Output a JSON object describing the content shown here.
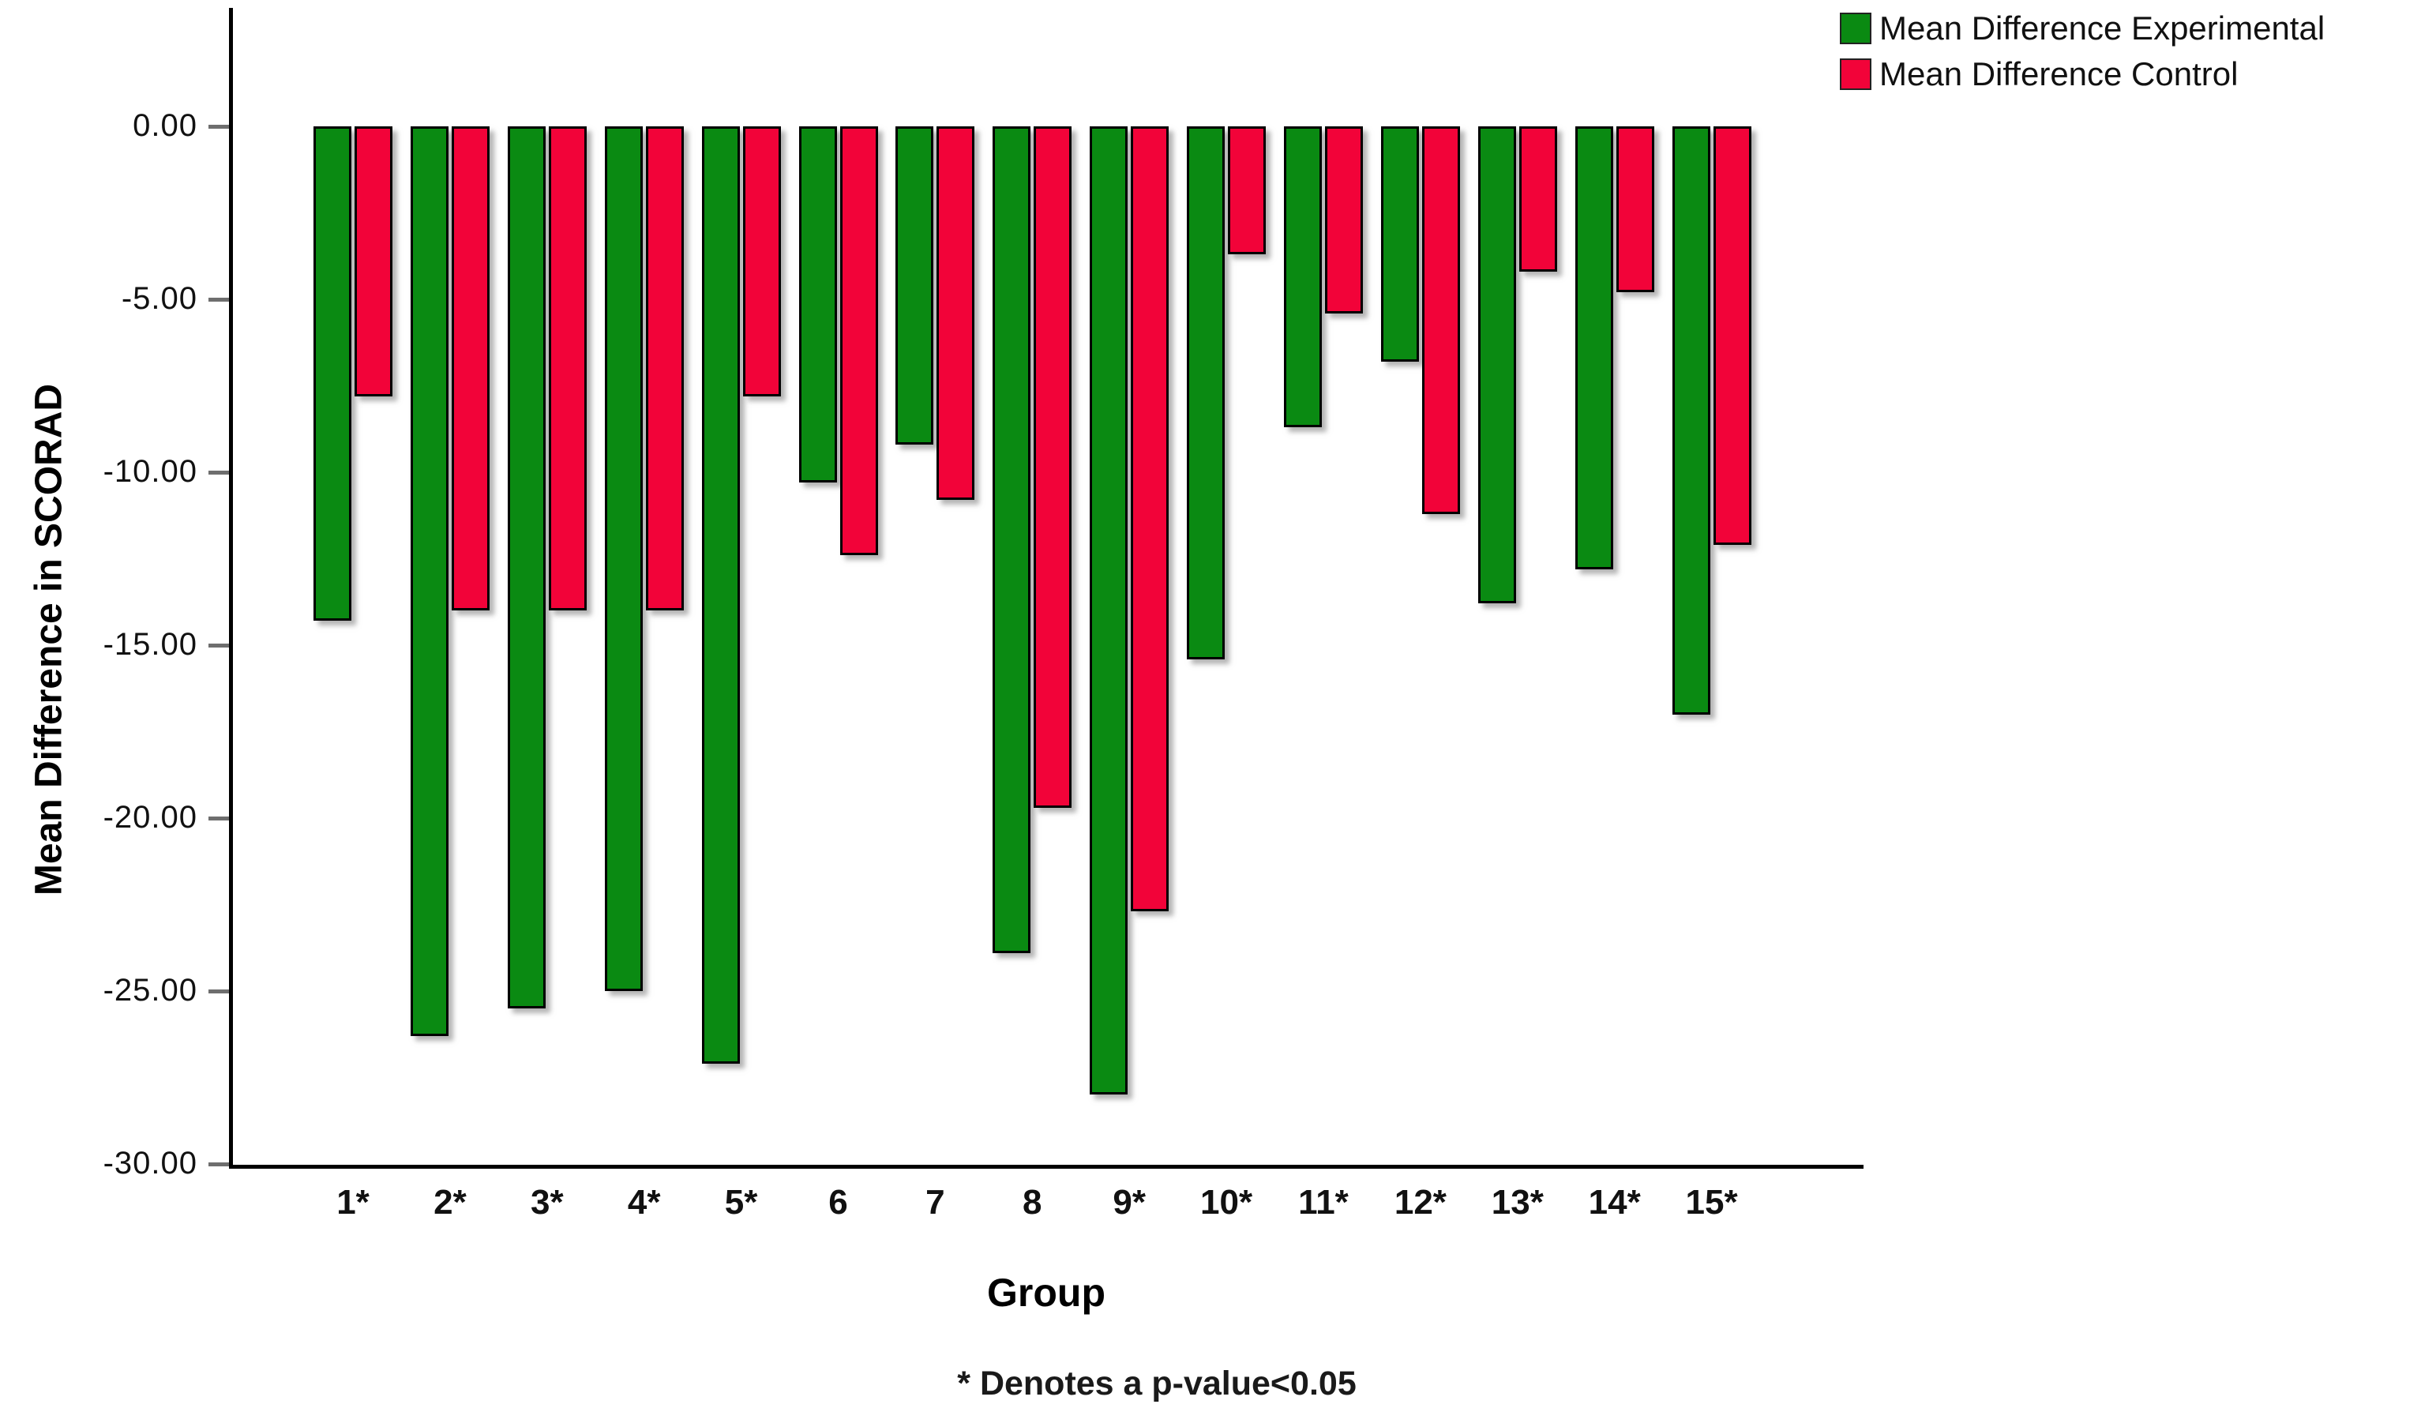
{
  "chart_data": {
    "type": "bar",
    "title": "",
    "xlabel": "Group",
    "ylabel": "Mean Difference in SCORAD",
    "ylim": [
      -30,
      0
    ],
    "ytick_step": -5,
    "ytick_labels": [
      "0.00",
      "-5.00",
      "-10.00",
      "-15.00",
      "-20.00",
      "-25.00",
      "-30.00"
    ],
    "categories": [
      "1*",
      "2*",
      "3*",
      "4*",
      "5*",
      "6",
      "7",
      "8",
      "9*",
      "10*",
      "11*",
      "12*",
      "13*",
      "14*",
      "15*"
    ],
    "series": [
      {
        "name": "Mean Difference Experimental",
        "color": "#0a8a12",
        "values": [
          -14.3,
          -26.3,
          -25.5,
          -25.0,
          -27.1,
          -10.3,
          -9.2,
          -23.9,
          -28.0,
          -15.4,
          -8.7,
          -6.8,
          -13.8,
          -12.8,
          -17.0
        ]
      },
      {
        "name": "Mean Difference Control",
        "color": "#f20339",
        "values": [
          -7.8,
          -14.0,
          -14.0,
          -14.0,
          -7.8,
          -12.4,
          -10.8,
          -19.7,
          -22.7,
          -3.7,
          -5.4,
          -11.2,
          -4.2,
          -4.8,
          -12.1
        ]
      }
    ],
    "legend_position": "top-right",
    "grid": false,
    "footnote": "* Denotes a p-value<0.05"
  }
}
